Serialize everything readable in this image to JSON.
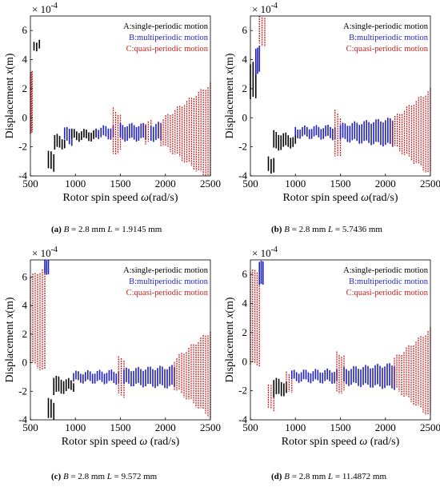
{
  "legend_colors": {
    "A": "#000000",
    "B": "#1f1fbf",
    "C": "#c81e1e"
  },
  "chart_data": [
    {
      "type": "scatter",
      "panel_id": "(a)",
      "caption": {
        "tag": "(a)",
        "B_text": "B",
        "B_val": " = 2.8 mm ",
        "L_text": "L",
        "L_val": " = 1.9145 mm"
      },
      "xlabel": "Rotor spin speed ",
      "xlabel_symbol": "ω",
      "xlabel_unit": "(rad/s)",
      "ylabel": "Displacement ",
      "ylabel_symbol": "x",
      "ylabel_unit": "(m)",
      "exponent_label": "× 10",
      "exponent_power": "-4",
      "xlim": [
        500,
        2500
      ],
      "ylim": [
        -4,
        7
      ],
      "xticks": [
        "500",
        "1000",
        "1500",
        "2000",
        "2500"
      ],
      "yticks": [
        "-4",
        "-2",
        "0",
        "2",
        "4",
        "6"
      ],
      "legend": [
        "A:single-periodic motion",
        "B:multiperiodic motion",
        "C:quasi-periodic motion"
      ],
      "legend_placement": "top-right",
      "regions": [
        {
          "motion": "C",
          "from": 500,
          "to": 520,
          "center": 1.0,
          "amp_start": 2.1,
          "amp_end": 2.1
        },
        {
          "motion": "A",
          "from": 540,
          "to": 600,
          "center": 5.0,
          "amp_start": 0.3,
          "amp_end": 0.3
        },
        {
          "motion": "A",
          "from": 700,
          "to": 760,
          "center": -3.0,
          "amp_start": 0.6,
          "amp_end": 0.6
        },
        {
          "motion": "A",
          "from": 770,
          "to": 880,
          "center": -1.7,
          "amp_start": 0.5,
          "amp_end": 0.3
        },
        {
          "motion": "B",
          "from": 880,
          "to": 960,
          "center": -1.2,
          "amp_start": 0.4,
          "amp_end": 0.6
        },
        {
          "motion": "A",
          "from": 960,
          "to": 1230,
          "center": -1.2,
          "amp_start": 0.3,
          "amp_end": 0.3
        },
        {
          "motion": "B",
          "from": 1230,
          "to": 1420,
          "center": -1.0,
          "amp_start": 0.3,
          "amp_end": 0.4
        },
        {
          "motion": "C",
          "from": 1420,
          "to": 1500,
          "center": -1.0,
          "amp_start": 1.6,
          "amp_end": 1.2
        },
        {
          "motion": "B",
          "from": 1500,
          "to": 1780,
          "center": -1.0,
          "amp_start": 0.5,
          "amp_end": 0.5
        },
        {
          "motion": "C",
          "from": 1780,
          "to": 1840,
          "center": -1.0,
          "amp_start": 0.7,
          "amp_end": 0.7
        },
        {
          "motion": "B",
          "from": 1840,
          "to": 1950,
          "center": -1.0,
          "amp_start": 0.5,
          "amp_end": 0.6
        },
        {
          "motion": "C",
          "from": 1950,
          "to": 2500,
          "center": -1.0,
          "amp_start": 0.8,
          "amp_end": 3.3
        }
      ]
    },
    {
      "type": "scatter",
      "panel_id": "(b)",
      "caption": {
        "tag": "(b)",
        "B_text": "B",
        "B_val": " = 2.8 mm ",
        "L_text": "L",
        "L_val": " = 5.7436 mm"
      },
      "xlabel": "Rotor spin speed ",
      "xlabel_symbol": "ω",
      "xlabel_unit": "(rad/s)",
      "ylabel": "Displacement ",
      "ylabel_symbol": "x",
      "ylabel_unit": "(m)",
      "exponent_label": "× 10",
      "exponent_power": "-4",
      "xlim": [
        500,
        2500
      ],
      "ylim": [
        -4,
        7
      ],
      "xticks": [
        "500",
        "1000",
        "1500",
        "2000",
        "2500"
      ],
      "yticks": [
        "-4",
        "-2",
        "0",
        "2",
        "4",
        "6"
      ],
      "legend": [
        "A:single-periodic motion",
        "B:multiperiodic motion",
        "C:quasi-periodic motion"
      ],
      "legend_placement": "top-right",
      "regions": [
        {
          "motion": "A",
          "from": 500,
          "to": 560,
          "center": 2.5,
          "amp_start": 1.2,
          "amp_end": 1.2
        },
        {
          "motion": "B",
          "from": 560,
          "to": 600,
          "center": 4.0,
          "amp_start": 0.9,
          "amp_end": 0.9
        },
        {
          "motion": "C",
          "from": 600,
          "to": 660,
          "center": 6.0,
          "amp_start": 1.0,
          "amp_end": 1.0
        },
        {
          "motion": "A",
          "from": 700,
          "to": 760,
          "center": -3.2,
          "amp_start": 0.5,
          "amp_end": 0.5
        },
        {
          "motion": "A",
          "from": 760,
          "to": 1000,
          "center": -1.6,
          "amp_start": 0.6,
          "amp_end": 0.3
        },
        {
          "motion": "B",
          "from": 1000,
          "to": 1440,
          "center": -1.0,
          "amp_start": 0.3,
          "amp_end": 0.4
        },
        {
          "motion": "C",
          "from": 1440,
          "to": 1500,
          "center": -1.2,
          "amp_start": 1.6,
          "amp_end": 1.3
        },
        {
          "motion": "B",
          "from": 1500,
          "to": 2080,
          "center": -1.0,
          "amp_start": 0.5,
          "amp_end": 0.9
        },
        {
          "motion": "C",
          "from": 2080,
          "to": 2500,
          "center": -1.0,
          "amp_start": 0.9,
          "amp_end": 2.9
        }
      ]
    },
    {
      "type": "scatter",
      "panel_id": "(c)",
      "caption": {
        "tag": "(c)",
        "B_text": "B",
        "B_val": " = 2.8 mm ",
        "L_text": "L",
        "L_val": " = 9.572 mm"
      },
      "xlabel": "Rotor spin speed ",
      "xlabel_symbol": "ω",
      "xlabel_unit": " (rad/s)",
      "ylabel": "Displacement ",
      "ylabel_symbol": "x",
      "ylabel_unit": "(m)",
      "exponent_label": "× 10",
      "exponent_power": "-4",
      "xlim": [
        500,
        2500
      ],
      "ylim": [
        -4,
        7.2
      ],
      "xticks": [
        "500",
        "1000",
        "1500",
        "2000",
        "2500"
      ],
      "yticks": [
        "-4",
        "-2",
        "0",
        "2",
        "4",
        "6"
      ],
      "legend": [
        "A:single-periodic motion",
        "B:multiperiodic motion",
        "C:quasi-periodic motion"
      ],
      "legend_placement": "top-right",
      "regions": [
        {
          "motion": "C",
          "from": 500,
          "to": 660,
          "center": 3.0,
          "amp_start": 3.0,
          "amp_end": 3.6
        },
        {
          "motion": "B",
          "from": 660,
          "to": 700,
          "center": 6.8,
          "amp_start": 0.5,
          "amp_end": 0.5
        },
        {
          "motion": "A",
          "from": 700,
          "to": 760,
          "center": -3.3,
          "amp_start": 0.7,
          "amp_end": 0.6
        },
        {
          "motion": "A",
          "from": 760,
          "to": 980,
          "center": -1.6,
          "amp_start": 0.6,
          "amp_end": 0.3
        },
        {
          "motion": "B",
          "from": 980,
          "to": 1480,
          "center": -1.0,
          "amp_start": 0.3,
          "amp_end": 0.4
        },
        {
          "motion": "C",
          "from": 1480,
          "to": 1540,
          "center": -1.0,
          "amp_start": 1.3,
          "amp_end": 1.3
        },
        {
          "motion": "B",
          "from": 1540,
          "to": 2100,
          "center": -1.0,
          "amp_start": 0.5,
          "amp_end": 0.7
        },
        {
          "motion": "C",
          "from": 2100,
          "to": 2500,
          "center": -0.8,
          "amp_start": 1.0,
          "amp_end": 3.0
        }
      ]
    },
    {
      "type": "scatter",
      "panel_id": "(d)",
      "caption": {
        "tag": "(d)",
        "B_text": "B",
        "B_val": " = 2.8 mm ",
        "L_text": "L",
        "L_val": " = 11.4872 mm"
      },
      "xlabel": "Rotor spin speed ",
      "xlabel_symbol": "ω",
      "xlabel_unit": " (rad/s)",
      "ylabel": "Displacement ",
      "ylabel_symbol": "x",
      "ylabel_unit": "(m)",
      "exponent_label": "× 10",
      "exponent_power": "-4",
      "xlim": [
        500,
        2500
      ],
      "ylim": [
        -4,
        7
      ],
      "xticks": [
        "500",
        "1000",
        "1500",
        "2000",
        "2500"
      ],
      "yticks": [
        "-4",
        "-2",
        "0",
        "2",
        "4",
        "6"
      ],
      "legend": [
        "A:single-periodic motion",
        "B:multiperiodic motion",
        "C:quasi-periodic motion"
      ],
      "legend_placement": "top-right",
      "regions": [
        {
          "motion": "C",
          "from": 500,
          "to": 600,
          "center": 3.0,
          "amp_start": 3.2,
          "amp_end": 3.2
        },
        {
          "motion": "B",
          "from": 600,
          "to": 640,
          "center": 6.0,
          "amp_start": 0.8,
          "amp_end": 0.8
        },
        {
          "motion": "C",
          "from": 700,
          "to": 760,
          "center": -2.5,
          "amp_start": 0.8,
          "amp_end": 0.8
        },
        {
          "motion": "A",
          "from": 760,
          "to": 900,
          "center": -1.8,
          "amp_start": 0.6,
          "amp_end": 0.4
        },
        {
          "motion": "C",
          "from": 900,
          "to": 960,
          "center": -1.4,
          "amp_start": 0.6,
          "amp_end": 0.6
        },
        {
          "motion": "B",
          "from": 960,
          "to": 1460,
          "center": -1.0,
          "amp_start": 0.3,
          "amp_end": 0.4
        },
        {
          "motion": "C",
          "from": 1460,
          "to": 1540,
          "center": -0.8,
          "amp_start": 1.4,
          "amp_end": 1.2
        },
        {
          "motion": "B",
          "from": 1540,
          "to": 2100,
          "center": -1.0,
          "amp_start": 0.5,
          "amp_end": 0.8
        },
        {
          "motion": "C",
          "from": 2100,
          "to": 2500,
          "center": -0.8,
          "amp_start": 1.0,
          "amp_end": 3.0
        }
      ]
    }
  ]
}
